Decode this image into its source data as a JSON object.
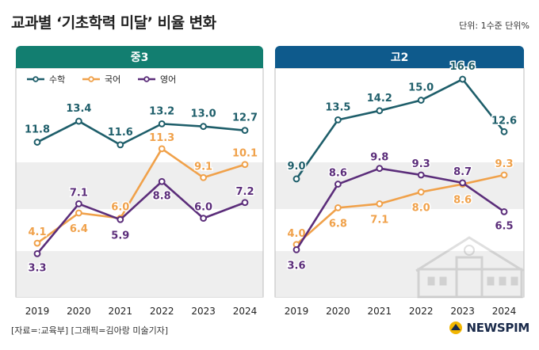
{
  "title": "교과별 ‘기초학력 미달’ 비율 변화",
  "unit": "단위: 1수준 단위%",
  "source": "[자료=:교육부] [그래픽=김아랑 미술기자]",
  "brand": "NEWSPIM",
  "colors": {
    "math": "#1e5e6a",
    "korean": "#f0a14a",
    "english": "#5b2d7a",
    "panel_middle": "#127e70",
    "panel_high": "#0e5a8c",
    "band": "#eeeeee"
  },
  "chart_data": [
    {
      "type": "line",
      "title": "중3",
      "x": [
        "2019",
        "2020",
        "2021",
        "2022",
        "2023",
        "2024"
      ],
      "ylim": [
        0,
        16
      ],
      "legend_position": "top-left",
      "series": [
        {
          "name": "수학",
          "key": "math",
          "values": [
            11.8,
            13.4,
            11.6,
            13.2,
            13.0,
            12.7
          ]
        },
        {
          "name": "국어",
          "key": "korean",
          "values": [
            4.1,
            6.4,
            6.0,
            11.3,
            9.1,
            10.1
          ]
        },
        {
          "name": "영어",
          "key": "english",
          "values": [
            3.3,
            7.1,
            5.9,
            8.8,
            6.0,
            7.2
          ]
        }
      ]
    },
    {
      "type": "line",
      "title": "고2",
      "x": [
        "2019",
        "2020",
        "2021",
        "2022",
        "2023",
        "2024"
      ],
      "ylim": [
        0,
        16
      ],
      "series": [
        {
          "name": "수학",
          "key": "math",
          "values": [
            9.0,
            13.5,
            14.2,
            15.0,
            16.6,
            12.6
          ]
        },
        {
          "name": "국어",
          "key": "korean",
          "values": [
            4.0,
            6.8,
            7.1,
            8.0,
            8.6,
            9.3
          ]
        },
        {
          "name": "영어",
          "key": "english",
          "values": [
            3.6,
            8.6,
            9.8,
            9.3,
            8.7,
            6.5
          ]
        }
      ]
    }
  ]
}
